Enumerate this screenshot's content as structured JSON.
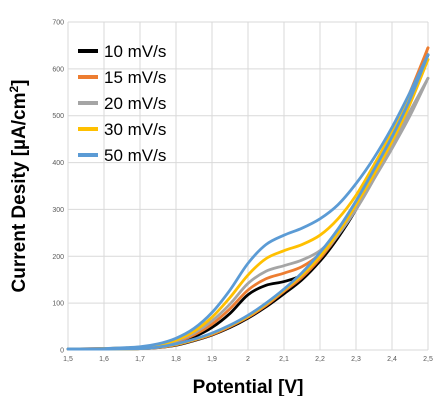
{
  "chart_data": {
    "type": "line",
    "title": "",
    "xlabel": "Potential [V]",
    "ylabel_main": "Current Desity [µA/cm",
    "ylabel_sup": "2",
    "ylabel_end": "]",
    "xlim": [
      1.5,
      2.5
    ],
    "ylim": [
      0,
      700
    ],
    "x_ticks": [
      1.5,
      1.6,
      1.7,
      1.8,
      1.9,
      2.0,
      2.1,
      2.2,
      2.3,
      2.4,
      2.5
    ],
    "x_tick_labels": [
      "1,5",
      "1,6",
      "1,7",
      "1,8",
      "1,9",
      "2",
      "2,1",
      "2,2",
      "2,3",
      "2,4",
      "2,5"
    ],
    "y_ticks": [
      0,
      100,
      200,
      300,
      400,
      500,
      600,
      700
    ],
    "y_tick_labels": [
      "0",
      "100",
      "200",
      "300",
      "400",
      "500",
      "600",
      "700"
    ],
    "grid": true,
    "legend_position": "top-left",
    "series": [
      {
        "name": "10 mV/s",
        "color": "#000000",
        "forward": [
          [
            1.5,
            2
          ],
          [
            1.6,
            3
          ],
          [
            1.7,
            5
          ],
          [
            1.75,
            8
          ],
          [
            1.8,
            15
          ],
          [
            1.85,
            28
          ],
          [
            1.9,
            48
          ],
          [
            1.95,
            78
          ],
          [
            2.0,
            118
          ],
          [
            2.05,
            138
          ],
          [
            2.1,
            146
          ],
          [
            2.15,
            160
          ],
          [
            2.2,
            190
          ],
          [
            2.25,
            240
          ],
          [
            2.3,
            300
          ],
          [
            2.35,
            370
          ],
          [
            2.4,
            450
          ],
          [
            2.45,
            540
          ],
          [
            2.5,
            630
          ]
        ],
        "reverse": [
          [
            2.5,
            630
          ],
          [
            2.45,
            530
          ],
          [
            2.4,
            440
          ],
          [
            2.35,
            370
          ],
          [
            2.3,
            300
          ],
          [
            2.25,
            240
          ],
          [
            2.2,
            190
          ],
          [
            2.15,
            150
          ],
          [
            2.1,
            120
          ],
          [
            2.05,
            92
          ],
          [
            2.0,
            68
          ],
          [
            1.95,
            48
          ],
          [
            1.9,
            32
          ],
          [
            1.85,
            20
          ],
          [
            1.8,
            10
          ],
          [
            1.75,
            5
          ],
          [
            1.7,
            3
          ],
          [
            1.6,
            2
          ],
          [
            1.5,
            2
          ]
        ]
      },
      {
        "name": "15 mV/s",
        "color": "#ed7d31",
        "forward": [
          [
            1.5,
            2
          ],
          [
            1.6,
            3
          ],
          [
            1.7,
            5
          ],
          [
            1.75,
            9
          ],
          [
            1.8,
            17
          ],
          [
            1.85,
            32
          ],
          [
            1.9,
            55
          ],
          [
            1.95,
            88
          ],
          [
            2.0,
            128
          ],
          [
            2.05,
            152
          ],
          [
            2.1,
            164
          ],
          [
            2.15,
            178
          ],
          [
            2.2,
            205
          ],
          [
            2.25,
            250
          ],
          [
            2.3,
            310
          ],
          [
            2.35,
            380
          ],
          [
            2.4,
            460
          ],
          [
            2.45,
            550
          ],
          [
            2.5,
            645
          ]
        ],
        "reverse": [
          [
            2.5,
            645
          ],
          [
            2.45,
            540
          ],
          [
            2.4,
            450
          ],
          [
            2.35,
            375
          ],
          [
            2.3,
            305
          ],
          [
            2.25,
            245
          ],
          [
            2.2,
            195
          ],
          [
            2.15,
            155
          ],
          [
            2.1,
            125
          ],
          [
            2.05,
            95
          ],
          [
            2.0,
            70
          ],
          [
            1.95,
            50
          ],
          [
            1.9,
            33
          ],
          [
            1.85,
            21
          ],
          [
            1.8,
            11
          ],
          [
            1.75,
            5
          ],
          [
            1.7,
            3
          ],
          [
            1.6,
            2
          ],
          [
            1.5,
            2
          ]
        ]
      },
      {
        "name": "20 mV/s",
        "color": "#a5a5a5",
        "forward": [
          [
            1.5,
            2
          ],
          [
            1.6,
            3
          ],
          [
            1.7,
            6
          ],
          [
            1.75,
            10
          ],
          [
            1.8,
            19
          ],
          [
            1.85,
            36
          ],
          [
            1.9,
            62
          ],
          [
            1.95,
            98
          ],
          [
            2.0,
            142
          ],
          [
            2.05,
            168
          ],
          [
            2.1,
            180
          ],
          [
            2.15,
            192
          ],
          [
            2.2,
            212
          ],
          [
            2.25,
            250
          ],
          [
            2.3,
            300
          ],
          [
            2.35,
            365
          ],
          [
            2.4,
            440
          ],
          [
            2.45,
            510
          ],
          [
            2.5,
            580
          ]
        ],
        "reverse": [
          [
            2.5,
            580
          ],
          [
            2.45,
            500
          ],
          [
            2.4,
            430
          ],
          [
            2.35,
            365
          ],
          [
            2.3,
            300
          ],
          [
            2.25,
            245
          ],
          [
            2.2,
            200
          ],
          [
            2.15,
            160
          ],
          [
            2.1,
            128
          ],
          [
            2.05,
            98
          ],
          [
            2.0,
            72
          ],
          [
            1.95,
            52
          ],
          [
            1.9,
            35
          ],
          [
            1.85,
            22
          ],
          [
            1.8,
            12
          ],
          [
            1.75,
            6
          ],
          [
            1.7,
            3
          ],
          [
            1.6,
            2
          ],
          [
            1.5,
            2
          ]
        ]
      },
      {
        "name": "30 mV/s",
        "color": "#ffc000",
        "forward": [
          [
            1.5,
            2
          ],
          [
            1.6,
            3
          ],
          [
            1.7,
            6
          ],
          [
            1.75,
            11
          ],
          [
            1.8,
            21
          ],
          [
            1.85,
            40
          ],
          [
            1.9,
            70
          ],
          [
            1.95,
            112
          ],
          [
            2.0,
            160
          ],
          [
            2.05,
            195
          ],
          [
            2.1,
            212
          ],
          [
            2.15,
            225
          ],
          [
            2.2,
            245
          ],
          [
            2.25,
            280
          ],
          [
            2.3,
            330
          ],
          [
            2.35,
            395
          ],
          [
            2.4,
            465
          ],
          [
            2.45,
            540
          ],
          [
            2.5,
            620
          ]
        ],
        "reverse": [
          [
            2.5,
            620
          ],
          [
            2.45,
            525
          ],
          [
            2.4,
            445
          ],
          [
            2.35,
            375
          ],
          [
            2.3,
            310
          ],
          [
            2.25,
            250
          ],
          [
            2.2,
            200
          ],
          [
            2.15,
            160
          ],
          [
            2.1,
            128
          ],
          [
            2.05,
            98
          ],
          [
            2.0,
            72
          ],
          [
            1.95,
            52
          ],
          [
            1.9,
            35
          ],
          [
            1.85,
            22
          ],
          [
            1.8,
            12
          ],
          [
            1.75,
            6
          ],
          [
            1.7,
            3
          ],
          [
            1.6,
            2
          ],
          [
            1.5,
            2
          ]
        ]
      },
      {
        "name": "50 mV/s",
        "color": "#5b9bd5",
        "forward": [
          [
            1.5,
            2
          ],
          [
            1.6,
            3
          ],
          [
            1.7,
            7
          ],
          [
            1.75,
            13
          ],
          [
            1.8,
            25
          ],
          [
            1.85,
            46
          ],
          [
            1.9,
            80
          ],
          [
            1.95,
            128
          ],
          [
            2.0,
            185
          ],
          [
            2.05,
            225
          ],
          [
            2.1,
            245
          ],
          [
            2.15,
            260
          ],
          [
            2.2,
            280
          ],
          [
            2.25,
            310
          ],
          [
            2.3,
            355
          ],
          [
            2.35,
            410
          ],
          [
            2.4,
            475
          ],
          [
            2.45,
            550
          ],
          [
            2.5,
            630
          ]
        ],
        "reverse": [
          [
            2.5,
            630
          ],
          [
            2.45,
            535
          ],
          [
            2.4,
            455
          ],
          [
            2.35,
            385
          ],
          [
            2.3,
            318
          ],
          [
            2.25,
            258
          ],
          [
            2.2,
            208
          ],
          [
            2.15,
            165
          ],
          [
            2.1,
            130
          ],
          [
            2.05,
            100
          ],
          [
            2.0,
            74
          ],
          [
            1.95,
            53
          ],
          [
            1.9,
            36
          ],
          [
            1.85,
            23
          ],
          [
            1.8,
            13
          ],
          [
            1.75,
            6
          ],
          [
            1.7,
            3
          ],
          [
            1.6,
            2
          ],
          [
            1.5,
            2
          ]
        ]
      }
    ]
  }
}
